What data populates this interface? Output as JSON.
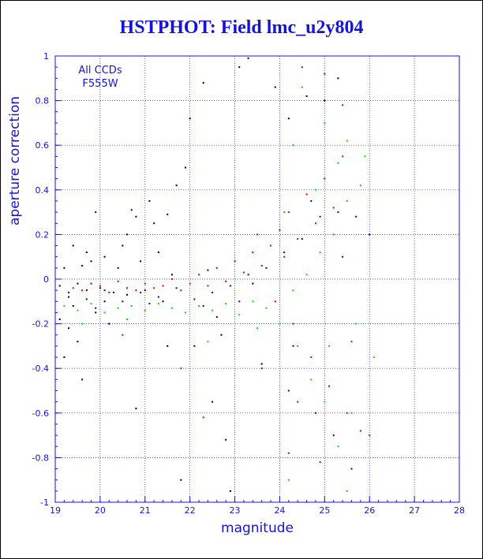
{
  "title": "HSTPHOT: Field lmc_u2y804",
  "annotation": {
    "line1": "All CCDs",
    "line2": "F555W"
  },
  "colors": {
    "axis": "#1414d4",
    "grid": "#1414d4",
    "title": "#1414d4",
    "points_black": "#000000",
    "points_red": "#e00000",
    "points_blue": "#0000e0",
    "points_green": "#00dd00"
  },
  "chart_data": {
    "type": "scatter",
    "xlabel": "magnitude",
    "ylabel": "aperture correction",
    "xlim": [
      19,
      28
    ],
    "ylim": [
      -1,
      1
    ],
    "xticks": [
      19,
      20,
      21,
      22,
      23,
      24,
      25,
      26,
      27,
      28
    ],
    "yticks": [
      -1,
      -0.8,
      -0.6,
      -0.4,
      -0.2,
      0,
      0.2,
      0.4,
      0.6,
      0.8,
      1
    ],
    "ytick_labels": [
      "-1",
      "-0.8",
      "-0.6",
      "-0.4",
      "-0.2",
      "0",
      "0.2",
      "0.4",
      "0.6",
      "0.8",
      "1"
    ],
    "grid": true,
    "series": [
      {
        "color": "#000000",
        "points": [
          [
            19.1,
            -0.03
          ],
          [
            19.2,
            0.05
          ],
          [
            19.3,
            -0.08
          ],
          [
            19.4,
            -0.12
          ],
          [
            19.5,
            -0.02
          ],
          [
            19.6,
            0.06
          ],
          [
            19.7,
            -0.05
          ],
          [
            19.8,
            0.08
          ],
          [
            19.9,
            -0.15
          ],
          [
            20.0,
            -0.04
          ],
          [
            20.1,
            0.1
          ],
          [
            20.3,
            -0.06
          ],
          [
            20.5,
            0.15
          ],
          [
            20.6,
            0.2
          ],
          [
            20.7,
            0.31
          ],
          [
            20.8,
            0.28
          ],
          [
            21.0,
            -0.05
          ],
          [
            21.1,
            0.35
          ],
          [
            21.2,
            0.25
          ],
          [
            21.3,
            0.12
          ],
          [
            21.5,
            -0.3
          ],
          [
            21.7,
            0.42
          ],
          [
            21.9,
            0.5
          ],
          [
            22.0,
            0.72
          ],
          [
            22.3,
            0.88
          ],
          [
            22.1,
            -0.3
          ],
          [
            22.5,
            -0.55
          ],
          [
            22.8,
            -0.72
          ],
          [
            23.1,
            0.95
          ],
          [
            23.3,
            0.99
          ],
          [
            23.6,
            -0.38
          ],
          [
            23.9,
            0.86
          ],
          [
            24.2,
            0.72
          ],
          [
            19.1,
            -0.18
          ],
          [
            19.3,
            -0.22
          ],
          [
            19.5,
            -0.28
          ],
          [
            19.2,
            -0.35
          ],
          [
            20.2,
            -0.2
          ],
          [
            21.4,
            -0.1
          ],
          [
            22.6,
            -0.17
          ],
          [
            19.4,
            0.15
          ],
          [
            20.4,
            0.05
          ],
          [
            21.6,
            0.02
          ],
          [
            22.4,
            0.04
          ],
          [
            23.4,
            -0.02
          ],
          [
            20.9,
            0.08
          ],
          [
            19.7,
            0.12
          ],
          [
            24.6,
            0.82
          ],
          [
            25.0,
            0.8
          ],
          [
            25.3,
            0.9
          ],
          [
            19.6,
            -0.45
          ],
          [
            20.8,
            -0.58
          ],
          [
            21.8,
            -0.9
          ],
          [
            22.9,
            -0.95
          ],
          [
            19.9,
            0.3
          ],
          [
            21.5,
            0.29
          ],
          [
            22.7,
            -0.25
          ],
          [
            20.1,
            -0.1
          ],
          [
            20.6,
            -0.07
          ],
          [
            19.8,
            -0.02
          ]
        ]
      },
      {
        "color": "#e00000",
        "points": [
          [
            19.4,
            -0.04
          ],
          [
            19.6,
            -0.05
          ],
          [
            19.8,
            -0.02
          ],
          [
            20.0,
            -0.03
          ],
          [
            20.2,
            -0.06
          ],
          [
            20.4,
            -0.01
          ],
          [
            20.6,
            -0.04
          ],
          [
            20.8,
            -0.05
          ],
          [
            21.0,
            -0.02
          ],
          [
            21.2,
            -0.04
          ],
          [
            21.4,
            -0.03
          ],
          [
            21.6,
            0.0
          ],
          [
            21.8,
            -0.05
          ],
          [
            22.0,
            -0.02
          ],
          [
            22.2,
            0.02
          ],
          [
            22.4,
            -0.03
          ],
          [
            22.6,
            0.05
          ],
          [
            22.8,
            -0.01
          ],
          [
            23.0,
            0.08
          ],
          [
            23.2,
            0.03
          ],
          [
            23.4,
            0.12
          ],
          [
            23.6,
            0.06
          ],
          [
            23.8,
            0.15
          ],
          [
            24.0,
            0.22
          ],
          [
            24.2,
            0.3
          ],
          [
            24.4,
            0.18
          ],
          [
            24.6,
            0.38
          ],
          [
            24.8,
            0.25
          ],
          [
            25.0,
            0.45
          ],
          [
            25.2,
            0.32
          ],
          [
            25.4,
            0.55
          ],
          [
            24.3,
            -0.2
          ],
          [
            24.7,
            -0.35
          ],
          [
            25.1,
            -0.48
          ],
          [
            25.5,
            -0.6
          ],
          [
            25.8,
            -0.68
          ],
          [
            24.5,
            0.95
          ],
          [
            25.0,
            0.92
          ],
          [
            25.4,
            0.78
          ],
          [
            24.9,
            -0.82
          ],
          [
            24.2,
            -0.78
          ],
          [
            26.0,
            -0.7
          ],
          [
            23.5,
            0.2
          ],
          [
            24.1,
            0.1
          ],
          [
            23.9,
            -0.1
          ],
          [
            21.8,
            -0.4
          ],
          [
            22.3,
            -0.62
          ],
          [
            20.5,
            -0.25
          ],
          [
            24.4,
            -0.55
          ],
          [
            25.6,
            -0.28
          ]
        ]
      },
      {
        "color": "#0000e0",
        "points": [
          [
            19.3,
            -0.06
          ],
          [
            19.7,
            -0.09
          ],
          [
            20.1,
            -0.05
          ],
          [
            20.5,
            -0.1
          ],
          [
            20.9,
            -0.06
          ],
          [
            21.3,
            -0.08
          ],
          [
            21.7,
            -0.04
          ],
          [
            22.1,
            -0.09
          ],
          [
            22.5,
            -0.06
          ],
          [
            22.9,
            -0.03
          ],
          [
            23.3,
            0.02
          ],
          [
            23.7,
            0.05
          ],
          [
            24.1,
            0.12
          ],
          [
            24.5,
            0.18
          ],
          [
            24.9,
            0.28
          ],
          [
            25.3,
            0.3
          ],
          [
            25.7,
            0.28
          ],
          [
            24.3,
            -0.3
          ],
          [
            24.8,
            -0.6
          ],
          [
            25.2,
            -0.7
          ],
          [
            25.6,
            -0.85
          ],
          [
            23.1,
            -0.1
          ],
          [
            22.3,
            -0.12
          ],
          [
            21.1,
            -0.11
          ],
          [
            19.9,
            -0.13
          ],
          [
            24.7,
            0.35
          ],
          [
            25.4,
            0.1
          ],
          [
            23.6,
            -0.4
          ],
          [
            26.0,
            0.2
          ],
          [
            24.2,
            -0.5
          ]
        ]
      },
      {
        "color": "#00dd00",
        "points": [
          [
            19.2,
            -0.12
          ],
          [
            19.5,
            -0.14
          ],
          [
            19.8,
            -0.11
          ],
          [
            20.1,
            -0.15
          ],
          [
            20.4,
            -0.13
          ],
          [
            20.7,
            -0.12
          ],
          [
            21.0,
            -0.14
          ],
          [
            21.3,
            -0.11
          ],
          [
            21.6,
            -0.13
          ],
          [
            21.9,
            -0.15
          ],
          [
            22.2,
            -0.12
          ],
          [
            22.5,
            -0.14
          ],
          [
            22.8,
            -0.11
          ],
          [
            23.1,
            -0.16
          ],
          [
            23.4,
            -0.1
          ],
          [
            23.7,
            -0.13
          ],
          [
            24.0,
            -0.2
          ],
          [
            24.3,
            -0.05
          ],
          [
            24.6,
            0.02
          ],
          [
            24.9,
            0.12
          ],
          [
            25.2,
            0.2
          ],
          [
            25.5,
            0.35
          ],
          [
            25.8,
            0.42
          ],
          [
            24.4,
            -0.3
          ],
          [
            24.7,
            -0.45
          ],
          [
            25.0,
            -0.55
          ],
          [
            25.3,
            -0.75
          ],
          [
            25.6,
            -0.6
          ],
          [
            24.2,
            -0.9
          ],
          [
            25.5,
            -0.95
          ],
          [
            24.5,
            0.86
          ],
          [
            25.0,
            0.7
          ],
          [
            25.5,
            0.62
          ],
          [
            25.9,
            0.55
          ],
          [
            26.1,
            -0.35
          ],
          [
            24.1,
            0.3
          ],
          [
            23.5,
            -0.22
          ],
          [
            22.4,
            -0.28
          ],
          [
            20.6,
            -0.18
          ],
          [
            19.6,
            -0.2
          ],
          [
            24.8,
            0.4
          ],
          [
            25.1,
            -0.3
          ],
          [
            25.7,
            -0.2
          ],
          [
            24.3,
            0.6
          ],
          [
            25.3,
            0.52
          ]
        ]
      }
    ]
  }
}
